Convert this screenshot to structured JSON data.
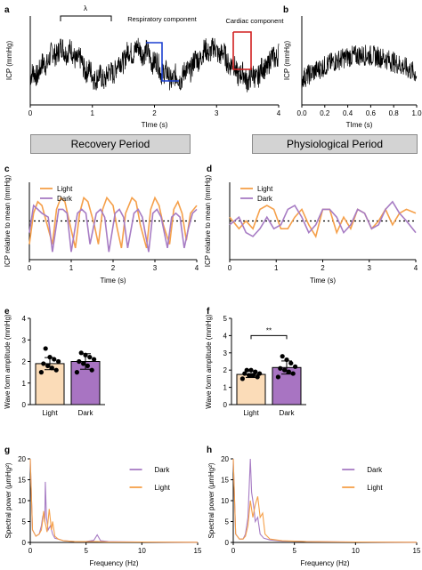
{
  "panels": {
    "a": "a",
    "b": "b",
    "c": "c",
    "d": "d",
    "e": "e",
    "f": "f",
    "g": "g",
    "h": "h"
  },
  "banners": {
    "recovery": "Recovery Period",
    "physiological": "Physiological Period"
  },
  "colors": {
    "light": "#f5a04a",
    "dark": "#a77cc4",
    "light_bar": "#fbdcb8",
    "dark_bar": "#a874c2",
    "trace": "#000000",
    "resp_box": "#1a3fd0",
    "card_box": "#d11f1f"
  },
  "chart_data": [
    {
      "id": "a",
      "type": "line",
      "xlabel": "TIme (s)",
      "ylabel": "ICP (mmHg)",
      "xlim": [
        0,
        4
      ],
      "xticks": [
        "0",
        "1",
        "2",
        "3",
        "4"
      ],
      "annotations": [
        "λ",
        "Respiratory component",
        "Cardiac component"
      ],
      "series": [
        {
          "values_description": "noisy ICP trace with slow respiratory oscillation, ~1.2 s period"
        }
      ]
    },
    {
      "id": "b",
      "type": "line",
      "xlabel": "TIme (s)",
      "ylabel": "ICP (mmHg)",
      "xlim": [
        0,
        1
      ],
      "xticks": [
        "0.0",
        "0.2",
        "0.4",
        "0.6",
        "0.8",
        "1.0"
      ]
    },
    {
      "id": "c",
      "type": "line",
      "xlabel": "Time (s)",
      "ylabel": "ICP relative to mean (mmHg)",
      "xlim": [
        0,
        4
      ],
      "xticks": [
        "0",
        "1",
        "2",
        "3",
        "4"
      ],
      "legend": [
        "Light",
        "Dark"
      ],
      "series": [
        {
          "name": "Light",
          "x": [
            0,
            0.1,
            0.2,
            0.3,
            0.4,
            0.55,
            0.65,
            0.75,
            0.85,
            0.95,
            1.1,
            1.2,
            1.3,
            1.4,
            1.55,
            1.65,
            1.75,
            1.85,
            2.0,
            2.1,
            2.2,
            2.3,
            2.45,
            2.55,
            2.65,
            2.8,
            2.9,
            3.0,
            3.1,
            3.2,
            3.35,
            3.45,
            3.55,
            3.65,
            3.75,
            3.85,
            4.0
          ],
          "y": [
            -0.6,
            0.2,
            0.5,
            0.4,
            0.0,
            -0.6,
            0.3,
            0.6,
            0.5,
            0.0,
            -0.7,
            0.2,
            0.6,
            0.5,
            -0.1,
            -0.6,
            0.3,
            0.6,
            0.4,
            -0.2,
            -0.7,
            0.2,
            0.6,
            0.5,
            -0.1,
            -0.7,
            0.3,
            0.6,
            0.4,
            -0.1,
            -0.6,
            0.3,
            0.5,
            0.2,
            -0.5,
            0.2,
            0.4
          ]
        },
        {
          "name": "Dark",
          "x": [
            0,
            0.1,
            0.2,
            0.3,
            0.45,
            0.55,
            0.7,
            0.8,
            0.9,
            1.0,
            1.15,
            1.25,
            1.35,
            1.45,
            1.6,
            1.7,
            1.8,
            1.9,
            2.05,
            2.15,
            2.25,
            2.35,
            2.5,
            2.6,
            2.7,
            2.85,
            2.95,
            3.05,
            3.15,
            3.3,
            3.4,
            3.5,
            3.6,
            3.7,
            3.8,
            3.9,
            4.0
          ],
          "y": [
            -0.3,
            0.4,
            0.3,
            0.2,
            0.1,
            -0.8,
            0.3,
            0.3,
            0.2,
            -0.8,
            0.2,
            0.3,
            0.2,
            -0.6,
            0.2,
            0.3,
            0.1,
            -0.8,
            0.2,
            0.3,
            0.1,
            -0.7,
            0.2,
            0.3,
            0.1,
            -0.8,
            0.2,
            0.3,
            0.1,
            -0.7,
            0.1,
            0.2,
            0.1,
            -0.7,
            -0.2,
            0.2,
            0.3
          ]
        }
      ]
    },
    {
      "id": "d",
      "type": "line",
      "xlabel": "Time (s)",
      "ylabel": "ICP relative to mean (mmHg)",
      "xlim": [
        0,
        4
      ],
      "xticks": [
        "0",
        "1",
        "2",
        "3",
        "4"
      ],
      "legend": [
        "Light",
        "Dark"
      ],
      "series": [
        {
          "name": "Light",
          "x": [
            0,
            0.2,
            0.35,
            0.5,
            0.65,
            0.8,
            0.95,
            1.1,
            1.25,
            1.4,
            1.55,
            1.7,
            1.85,
            2.0,
            2.15,
            2.3,
            2.45,
            2.6,
            2.75,
            2.9,
            3.05,
            3.2,
            3.35,
            3.5,
            3.65,
            3.8,
            4.0
          ],
          "y": [
            0.1,
            -0.2,
            0.0,
            -0.2,
            0.3,
            0.4,
            0.3,
            -0.2,
            -0.2,
            0.1,
            0.3,
            -0.1,
            -0.4,
            0.3,
            0.3,
            -0.3,
            0.1,
            -0.2,
            0.3,
            0.2,
            -0.2,
            0.0,
            0.3,
            -0.1,
            0.2,
            0.3,
            0.2
          ]
        },
        {
          "name": "Dark",
          "x": [
            0,
            0.2,
            0.35,
            0.5,
            0.65,
            0.8,
            0.95,
            1.1,
            1.25,
            1.4,
            1.55,
            1.7,
            1.85,
            2.0,
            2.15,
            2.3,
            2.45,
            2.6,
            2.75,
            2.9,
            3.05,
            3.2,
            3.35,
            3.5,
            3.65,
            3.8,
            4.0
          ],
          "y": [
            -0.1,
            0.1,
            -0.3,
            -0.4,
            -0.2,
            0.1,
            -0.2,
            -0.1,
            0.3,
            0.4,
            0.1,
            -0.3,
            -0.1,
            0.3,
            0.3,
            0.1,
            -0.3,
            -0.1,
            0.3,
            0.2,
            -0.2,
            -0.1,
            0.3,
            0.5,
            0.2,
            0.0,
            -0.3
          ]
        }
      ]
    },
    {
      "id": "e",
      "type": "bar",
      "ylabel": "Wave form amplitude (mmHg)",
      "categories": [
        "Light",
        "Dark"
      ],
      "values": [
        1.9,
        2.0
      ],
      "errors": [
        0.28,
        0.36
      ],
      "ylim": [
        0,
        4
      ],
      "yticks": [
        "0",
        "1",
        "2",
        "3",
        "4"
      ],
      "points": [
        [
          1.5,
          1.6,
          1.7,
          1.8,
          1.9,
          2.0,
          2.1,
          2.2,
          2.6
        ],
        [
          1.5,
          1.6,
          1.8,
          1.9,
          2.0,
          2.1,
          2.2,
          2.3,
          2.4
        ]
      ]
    },
    {
      "id": "f",
      "type": "bar",
      "ylabel": "Wave form amplitude (mmHg)",
      "categories": [
        "Light",
        "Dark"
      ],
      "values": [
        1.75,
        2.15
      ],
      "errors": [
        0.18,
        0.38
      ],
      "ylim": [
        0,
        5
      ],
      "yticks": [
        "0",
        "1",
        "2",
        "3",
        "4",
        "5"
      ],
      "significance": "**",
      "points": [
        [
          1.5,
          1.6,
          1.7,
          1.7,
          1.8,
          1.8,
          1.9,
          2.0,
          2.0
        ],
        [
          1.6,
          1.8,
          1.9,
          2.0,
          2.1,
          2.2,
          2.4,
          2.6,
          2.8
        ]
      ]
    },
    {
      "id": "g",
      "type": "line",
      "xlabel": "Frequency (Hz)",
      "ylabel": "Spectral power (μmHg²)",
      "xlim": [
        0,
        15
      ],
      "ylim": [
        0,
        20
      ],
      "xticks": [
        "0",
        "5",
        "10",
        "15"
      ],
      "yticks": [
        "0",
        "5",
        "10",
        "15",
        "20"
      ],
      "legend": [
        "Dark",
        "Light"
      ],
      "series": [
        {
          "name": "Dark",
          "x": [
            0,
            0.2,
            0.5,
            0.8,
            1.0,
            1.1,
            1.2,
            1.3,
            1.35,
            1.45,
            1.6,
            1.8,
            2.0,
            2.2,
            2.5,
            3.0,
            4,
            5,
            5.7,
            6.0,
            6.3,
            7,
            10,
            15
          ],
          "y": [
            20,
            3,
            1.5,
            2,
            4,
            6,
            7,
            5,
            14.5,
            6,
            3,
            4,
            2,
            1,
            0.8,
            0.4,
            0.2,
            0.2,
            0.5,
            1.8,
            0.4,
            0.2,
            0.1,
            0.05
          ]
        },
        {
          "name": "Light",
          "x": [
            0,
            0.2,
            0.5,
            0.8,
            1.0,
            1.1,
            1.2,
            1.3,
            1.4,
            1.5,
            1.7,
            1.9,
            2.0,
            2.2,
            2.5,
            3.0,
            4,
            5,
            6,
            7,
            10,
            15
          ],
          "y": [
            20,
            3,
            1.5,
            2,
            3,
            5,
            7.5,
            5,
            4,
            2.5,
            8,
            3,
            5,
            1.5,
            0.8,
            0.4,
            0.2,
            0.2,
            0.2,
            0.1,
            0.1,
            0.05
          ]
        }
      ]
    },
    {
      "id": "h",
      "type": "line",
      "xlabel": "Frequency (Hz)",
      "ylabel": "Spectral power (μmHg²)",
      "xlim": [
        0,
        15
      ],
      "ylim": [
        0,
        20
      ],
      "xticks": [
        "0",
        "5",
        "10",
        "15"
      ],
      "yticks": [
        "0",
        "5",
        "10",
        "15",
        "20"
      ],
      "legend": [
        "Dark",
        "Light"
      ],
      "series": [
        {
          "name": "Dark",
          "x": [
            0,
            0.2,
            0.5,
            0.8,
            1.0,
            1.2,
            1.4,
            1.5,
            1.6,
            1.7,
            1.8,
            2.0,
            2.2,
            2.5,
            3,
            4,
            5,
            6,
            10,
            15
          ],
          "y": [
            20,
            2,
            0.8,
            0.8,
            2,
            6,
            20,
            12,
            10,
            8,
            5,
            6,
            2,
            1,
            0.6,
            0.3,
            0.3,
            0.2,
            0.1,
            0.05
          ]
        },
        {
          "name": "Light",
          "x": [
            0,
            0.2,
            0.5,
            0.8,
            1.0,
            1.2,
            1.4,
            1.6,
            1.8,
            2.0,
            2.2,
            2.4,
            2.6,
            3,
            4,
            5,
            6,
            10,
            15
          ],
          "y": [
            20,
            2,
            0.8,
            0.8,
            1.5,
            4,
            10,
            6,
            9,
            11,
            6,
            7,
            2,
            0.8,
            0.4,
            0.3,
            0.2,
            0.1,
            0.05
          ]
        }
      ]
    }
  ]
}
